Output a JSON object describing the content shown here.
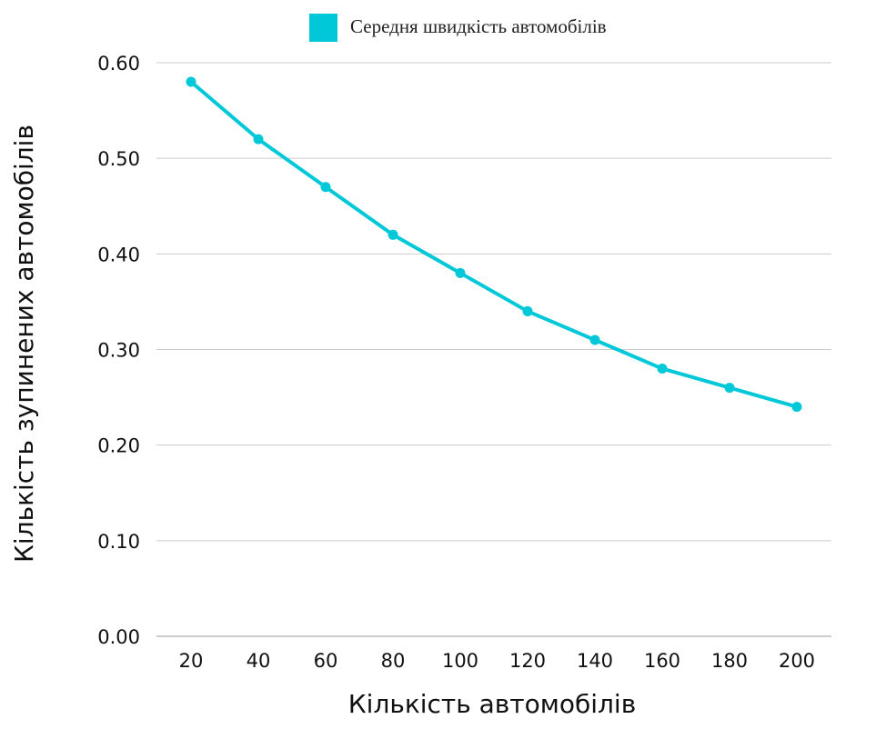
{
  "chart_data": {
    "type": "line",
    "title": "",
    "xlabel": "Кількість автомобілів",
    "ylabel": "Кількість зупинених автомобілів",
    "categories": [
      "20",
      "40",
      "60",
      "80",
      "100",
      "120",
      "140",
      "160",
      "180",
      "200"
    ],
    "series": [
      {
        "name": "Середня швидкість автомобілів",
        "color": "#00c8d9",
        "values": [
          0.58,
          0.52,
          0.47,
          0.42,
          0.38,
          0.34,
          0.31,
          0.28,
          0.26,
          0.24
        ]
      }
    ],
    "ylim": [
      0,
      0.6
    ],
    "yticks": [
      "0.00",
      "0.10",
      "0.20",
      "0.30",
      "0.40",
      "0.50",
      "0.60"
    ],
    "grid": true,
    "legend_position": "top"
  }
}
